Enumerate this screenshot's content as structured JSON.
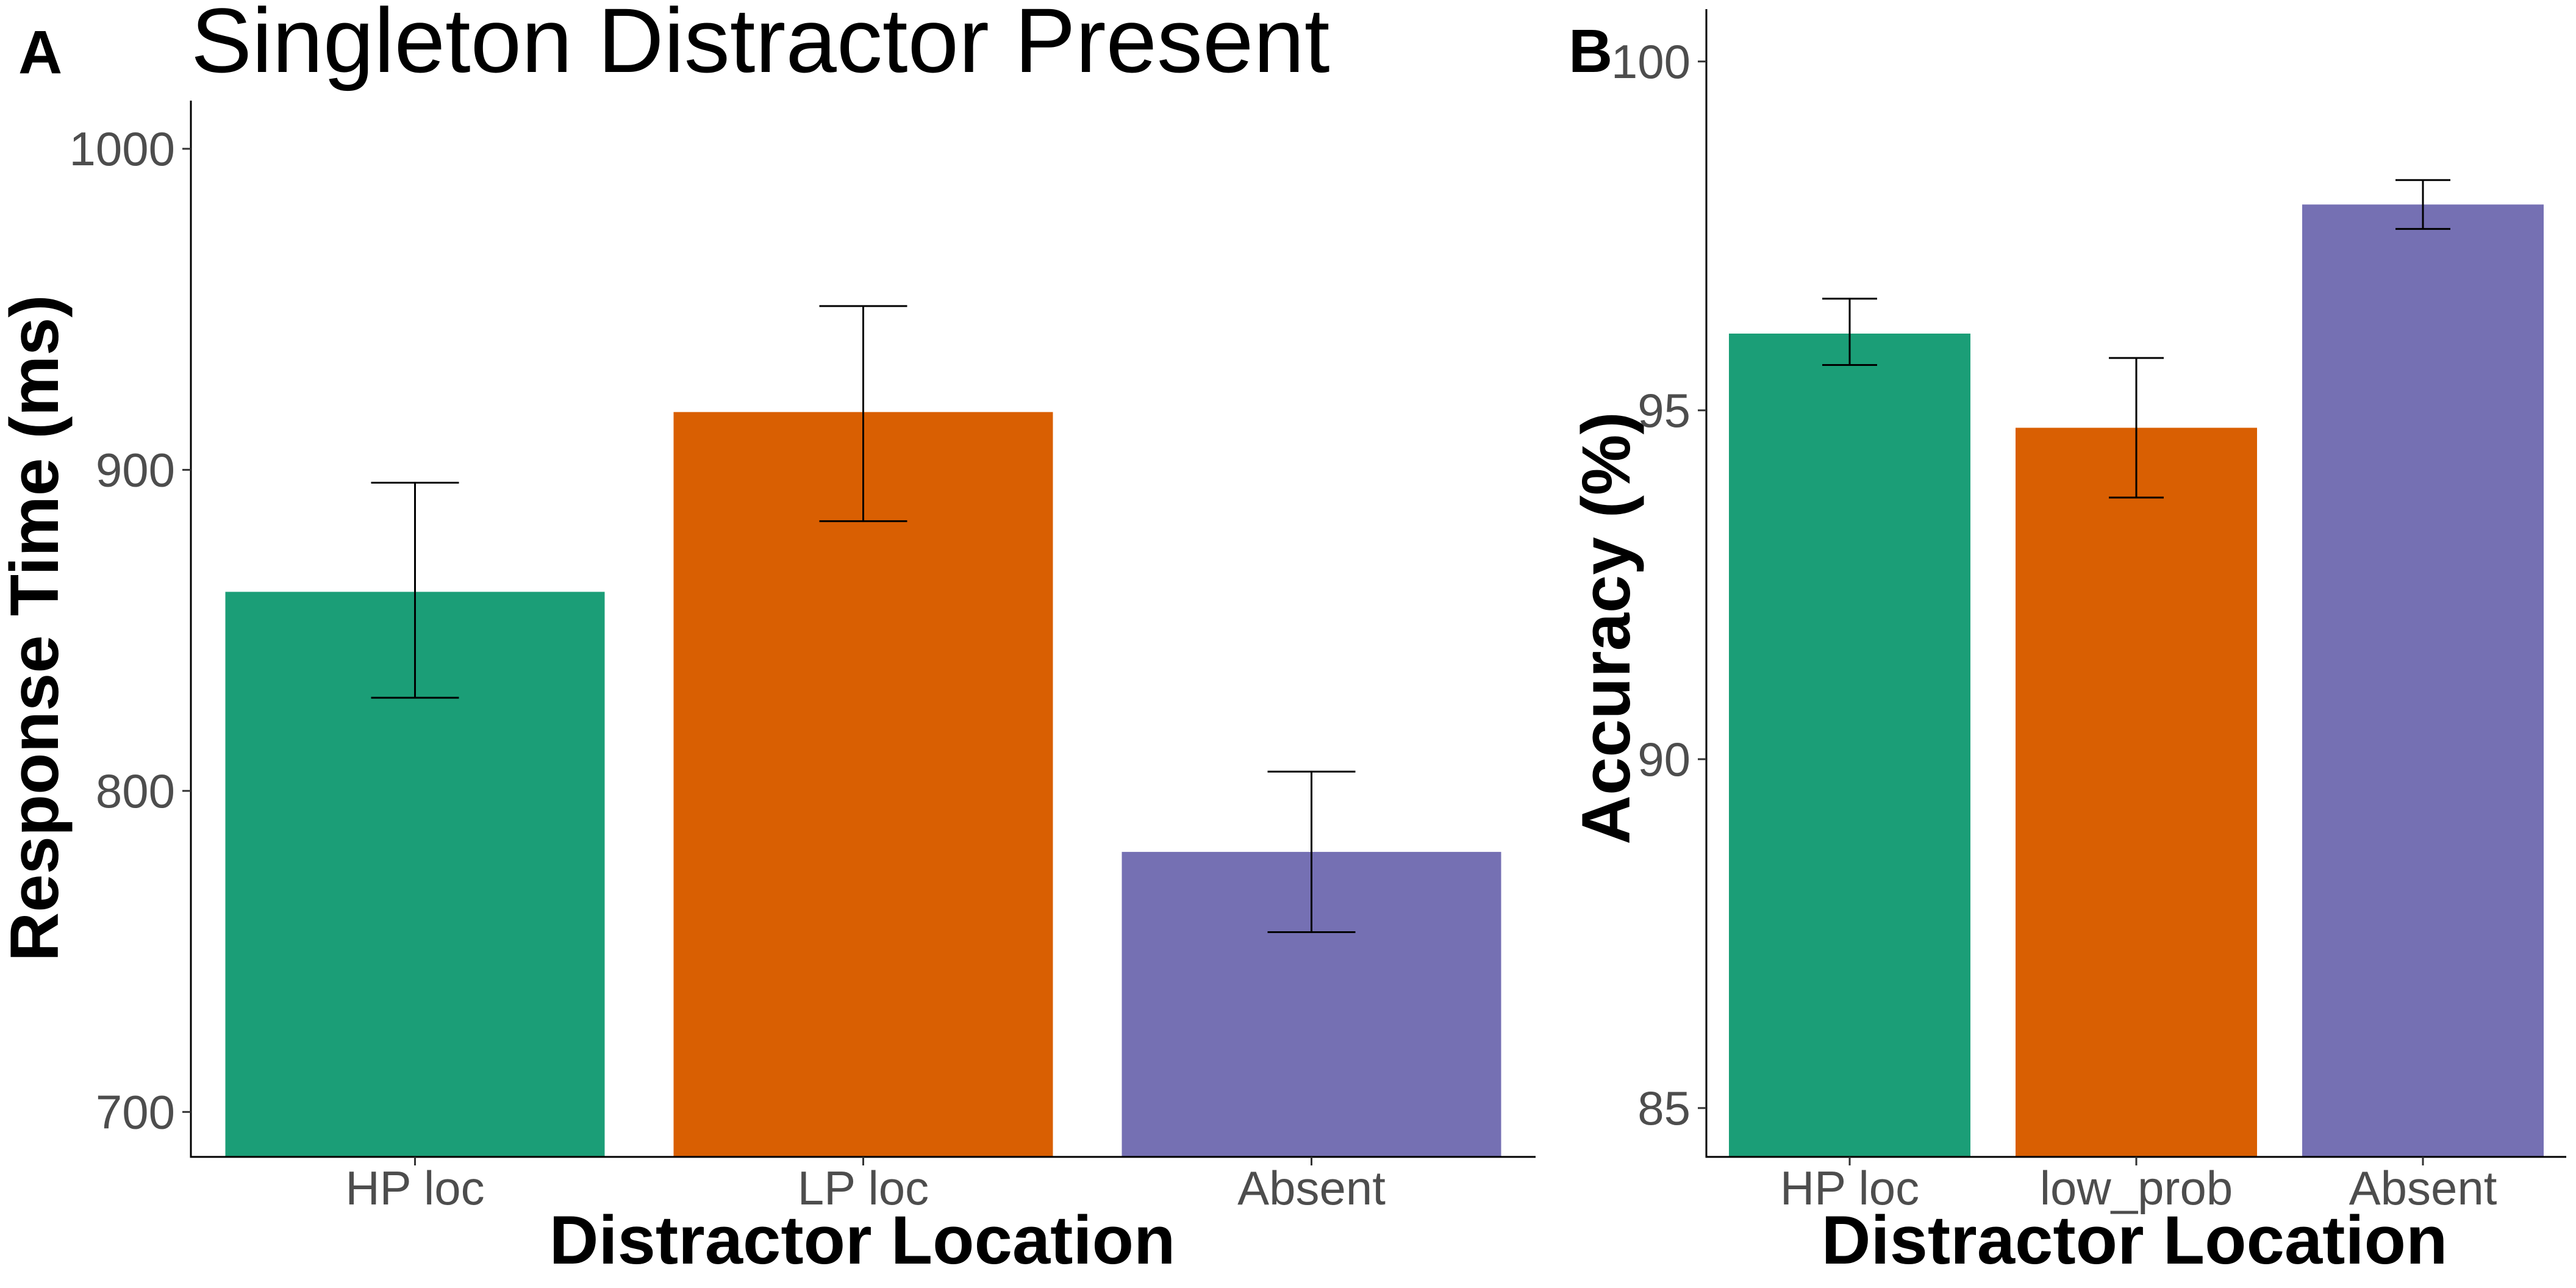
{
  "chart_data": [
    {
      "panel": "A",
      "type": "bar",
      "title": "Singleton Distractor Present",
      "xlabel": "Distractor Location",
      "ylabel": "Response Time (ms)",
      "categories": [
        "HP loc",
        "LP loc",
        "Absent"
      ],
      "values": [
        862,
        918,
        781
      ],
      "error_low": [
        829,
        884,
        756
      ],
      "error_high": [
        896,
        951,
        806
      ],
      "colors": [
        "#1b9e77",
        "#d95f02",
        "#7570b3"
      ],
      "ylim": [
        686,
        1015
      ],
      "yticks": [
        700,
        800,
        900,
        1000
      ],
      "ytick_labels": [
        "700",
        "800",
        "900",
        "1000"
      ],
      "grid": false,
      "legend": "none"
    },
    {
      "panel": "B",
      "type": "bar",
      "title": "",
      "xlabel": "Distractor Location",
      "ylabel": "Accuracy (%)",
      "categories": [
        "HP loc",
        "low_prob",
        "Absent"
      ],
      "values": [
        96.1,
        94.75,
        97.95
      ],
      "error_low": [
        95.65,
        93.75,
        97.6
      ],
      "error_high": [
        96.6,
        95.75,
        98.3
      ],
      "colors": [
        "#1b9e77",
        "#d95f02",
        "#7570b3"
      ],
      "ylim": [
        84.3,
        100.75
      ],
      "yticks": [
        85,
        90,
        95,
        100
      ],
      "ytick_labels": [
        "85",
        "90",
        "95",
        "100"
      ],
      "grid": false,
      "legend": "none"
    }
  ]
}
